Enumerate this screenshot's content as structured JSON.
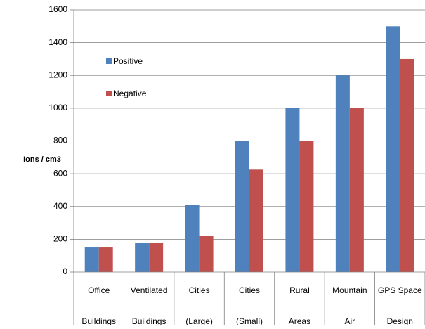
{
  "chart_data": {
    "type": "bar",
    "title": "",
    "xlabel": "",
    "ylabel": "Ions / cm3",
    "ylim": [
      0,
      1600
    ],
    "yticks": [
      0,
      200,
      400,
      600,
      800,
      1000,
      1200,
      1400,
      1600
    ],
    "grid": "horizontal",
    "legend_position": "upper-left inside plot",
    "categories": [
      [
        "Office",
        "Buildings"
      ],
      [
        "Ventilated",
        "Buildings"
      ],
      [
        "Cities",
        "(Large)"
      ],
      [
        "Cities",
        "(Small)"
      ],
      [
        "Rural",
        "Areas"
      ],
      [
        "Mountain",
        "Air"
      ],
      [
        "GPS Space",
        "Design"
      ]
    ],
    "series": [
      {
        "name": "Positive",
        "color": "#4F81BD",
        "values": [
          150,
          180,
          410,
          800,
          1000,
          1200,
          1500
        ]
      },
      {
        "name": "Negative",
        "color": "#C0504D",
        "values": [
          150,
          180,
          220,
          625,
          800,
          1000,
          1300
        ]
      }
    ]
  }
}
